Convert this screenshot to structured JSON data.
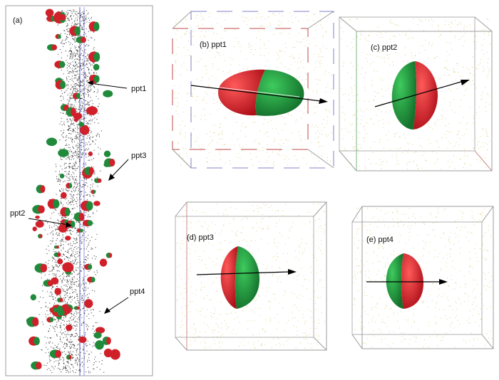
{
  "panels": {
    "a": {
      "label": "(a)",
      "callouts": [
        "ppt1",
        "ppt3",
        "ppt2",
        "ppt4"
      ]
    },
    "b": {
      "label": "(b) ppt1"
    },
    "c": {
      "label": "(c) ppt2"
    },
    "d": {
      "label": "(d) ppt3"
    },
    "e": {
      "label": "(e) ppt4"
    }
  },
  "colors": {
    "precipitate_red": "#d0202a",
    "precipitate_green": "#1f8a3a",
    "matrix_dots": "#c9b64a",
    "atoms_dark": "#222222",
    "box_frame": "#a7a7a7"
  }
}
